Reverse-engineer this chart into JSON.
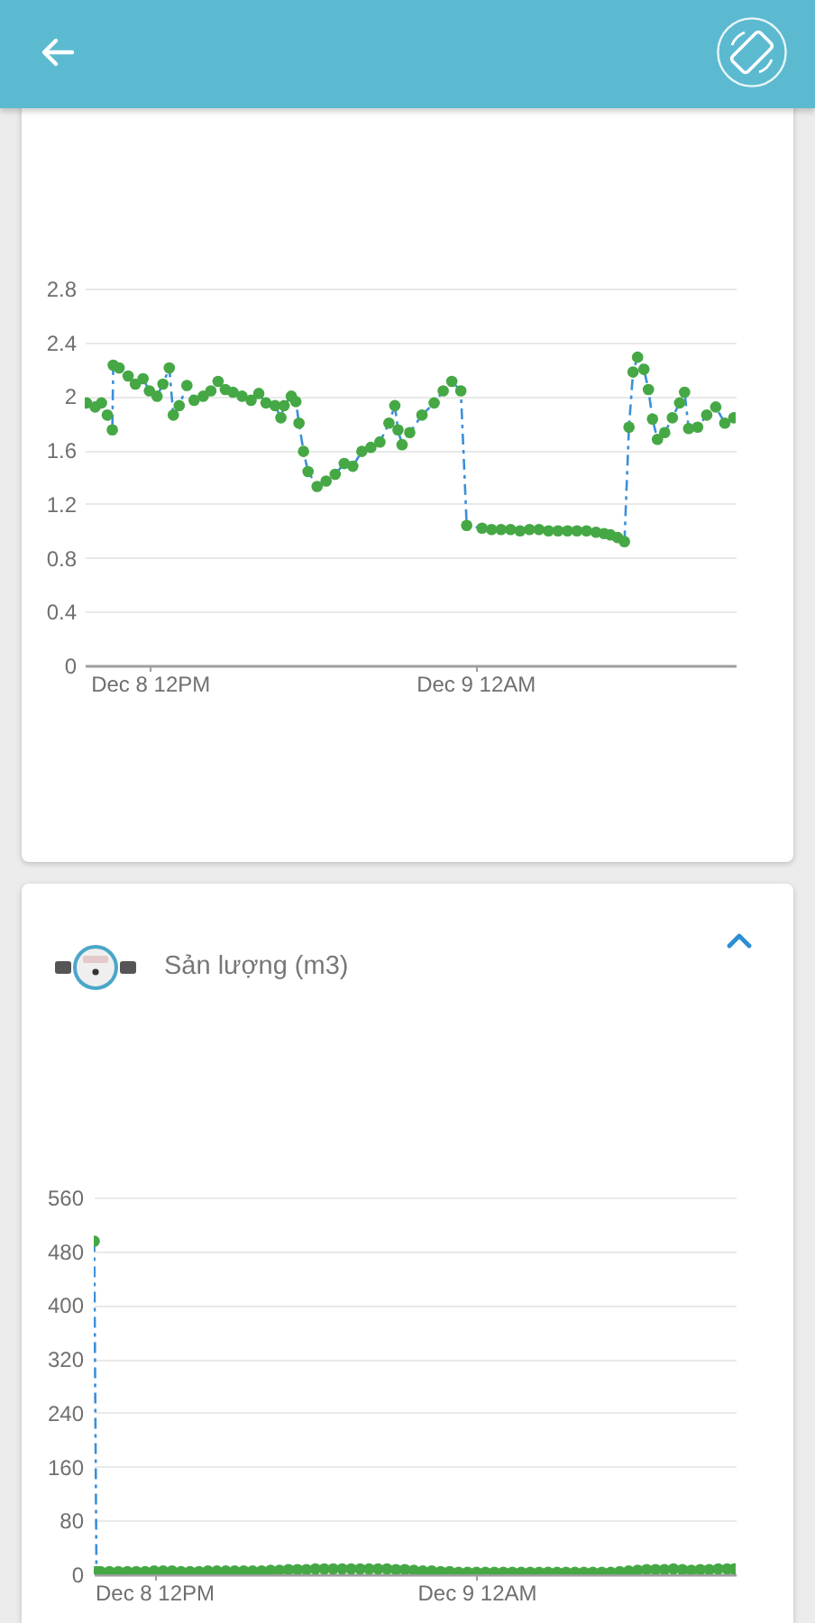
{
  "chart_data": [
    {
      "type": "line",
      "x": [
        "--12-08T09:40",
        "--12-08T09:59",
        "--12-08T10:13",
        "--12-08T10:26",
        "--12-08T10:37",
        "--12-08T10:39",
        "--12-08T10:52",
        "--12-08T11:12",
        "--12-08T11:28",
        "--12-08T11:45",
        "--12-08T11:59",
        "--12-08T12:16",
        "--12-08T12:29",
        "--12-08T12:43",
        "--12-08T12:52",
        "--12-08T13:05",
        "--12-08T13:22",
        "--12-08T13:38",
        "--12-08T13:58",
        "--12-08T14:15",
        "--12-08T14:31",
        "--12-08T14:47",
        "--12-08T15:04",
        "--12-08T15:24",
        "--12-08T15:44",
        "--12-08T16:01",
        "--12-08T16:17",
        "--12-08T16:37",
        "--12-08T16:50",
        "--12-08T16:57",
        "--12-08T17:13",
        "--12-08T17:23",
        "--12-08T17:30",
        "--12-08T17:40",
        "--12-08T17:50",
        "--12-08T18:10",
        "--12-08T18:30",
        "--12-08T18:50",
        "--12-08T19:10",
        "--12-08T19:29",
        "--12-08T19:49",
        "--12-08T20:09",
        "--12-08T20:29",
        "--12-08T20:49",
        "--12-08T21:02",
        "--12-08T21:09",
        "--12-08T21:18",
        "--12-08T21:35",
        "--12-08T22:02",
        "--12-08T22:29",
        "--12-08T22:49",
        "--12-08T23:08",
        "--12-08T23:28",
        "--12-08T23:41",
        "--12-09T00:15",
        "--12-09T00:36",
        "--12-09T00:57",
        "--12-09T01:18",
        "--12-09T01:39",
        "--12-09T02:00",
        "--12-09T02:21",
        "--12-09T02:42",
        "--12-09T03:03",
        "--12-09T03:24",
        "--12-09T03:45",
        "--12-09T04:06",
        "--12-09T04:27",
        "--12-09T04:45",
        "--12-09T04:59",
        "--12-09T05:15",
        "--12-09T05:30",
        "--12-09T05:40",
        "--12-09T05:49",
        "--12-09T05:59",
        "--12-09T06:13",
        "--12-09T06:23",
        "--12-09T06:32",
        "--12-09T06:43",
        "--12-09T06:59",
        "--12-09T07:16",
        "--12-09T07:32",
        "--12-09T07:43",
        "--12-09T07:52",
        "--12-09T08:12",
        "--12-09T08:32",
        "--12-09T08:52",
        "--12-09T09:12",
        "--12-09T09:32"
      ],
      "series": [
        {
          "type": "line",
          "color": "#3b8fd9",
          "line_style": "dashed",
          "marker": "none",
          "values": [
            1.95,
            1.92,
            1.95,
            1.86,
            1.75,
            2.23,
            2.21,
            2.15,
            2.09,
            2.13,
            2.04,
            2.0,
            2.09,
            2.21,
            1.86,
            1.93,
            2.08,
            1.97,
            2.0,
            2.04,
            2.11,
            2.05,
            2.03,
            2.0,
            1.97,
            2.02,
            1.95,
            1.93,
            1.84,
            1.93,
            2.0,
            1.96,
            1.8,
            1.59,
            1.44,
            1.33,
            1.37,
            1.42,
            1.5,
            1.48,
            1.59,
            1.62,
            1.66,
            1.8,
            1.93,
            1.75,
            1.64,
            1.73,
            1.86,
            1.95,
            2.04,
            2.11,
            2.04,
            1.04,
            1.02,
            1.01,
            1.01,
            1.01,
            1.0,
            1.01,
            1.01,
            1.0,
            1.0,
            1.0,
            1.0,
            1.0,
            0.99,
            0.98,
            0.97,
            0.95,
            0.92,
            1.77,
            2.18,
            2.29,
            2.2,
            2.05,
            1.83,
            1.68,
            1.73,
            1.84,
            1.95,
            2.03,
            1.76,
            1.77,
            1.86,
            1.92,
            1.8,
            1.84
          ]
        },
        {
          "type": "scatter",
          "color": "#45a845",
          "marker": "circle",
          "values": [
            1.95,
            1.92,
            1.95,
            1.86,
            1.75,
            2.23,
            2.21,
            2.15,
            2.09,
            2.13,
            2.04,
            2.0,
            2.09,
            2.21,
            1.86,
            1.93,
            2.08,
            1.97,
            2.0,
            2.04,
            2.11,
            2.05,
            2.03,
            2.0,
            1.97,
            2.02,
            1.95,
            1.93,
            1.84,
            1.93,
            2.0,
            1.96,
            1.8,
            1.59,
            1.44,
            1.33,
            1.37,
            1.42,
            1.5,
            1.48,
            1.59,
            1.62,
            1.66,
            1.8,
            1.93,
            1.75,
            1.64,
            1.73,
            1.86,
            1.95,
            2.04,
            2.11,
            2.04,
            1.04,
            1.02,
            1.01,
            1.01,
            1.01,
            1.0,
            1.01,
            1.01,
            1.0,
            1.0,
            1.0,
            1.0,
            1.0,
            0.99,
            0.98,
            0.97,
            0.95,
            0.92,
            1.77,
            2.18,
            2.29,
            2.2,
            2.05,
            1.83,
            1.68,
            1.73,
            1.84,
            1.95,
            2.03,
            1.76,
            1.77,
            1.86,
            1.92,
            1.8,
            1.84
          ]
        }
      ],
      "xlim": [
        "--12-08T09:36",
        "--12-09T09:36"
      ],
      "xticks": [
        {
          "value": "--12-08T12:00",
          "label": "Dec 8 12PM"
        },
        {
          "value": "--12-09T00:00",
          "label": "Dec 9 12AM"
        }
      ],
      "ylim": [
        0,
        2.8
      ],
      "yticks": [
        0,
        0.4,
        0.8,
        1.2,
        1.6,
        2,
        2.4,
        2.8
      ],
      "grid": "y"
    },
    {
      "type": "line",
      "title": "Sản lượng (m3)",
      "x": [
        "--12-08T09:46",
        "--12-08T09:51",
        "--12-08T10:00",
        "--12-08T10:20",
        "--12-08T10:40",
        "--12-08T11:00",
        "--12-08T11:20",
        "--12-08T11:40",
        "--12-08T12:00",
        "--12-08T12:20",
        "--12-08T12:40",
        "--12-08T13:00",
        "--12-08T13:20",
        "--12-08T13:40",
        "--12-08T14:00",
        "--12-08T14:20",
        "--12-08T14:40",
        "--12-08T15:00",
        "--12-08T15:20",
        "--12-08T15:40",
        "--12-08T16:00",
        "--12-08T16:20",
        "--12-08T16:40",
        "--12-08T17:00",
        "--12-08T17:20",
        "--12-08T17:40",
        "--12-08T18:00",
        "--12-08T18:20",
        "--12-08T18:40",
        "--12-08T19:00",
        "--12-08T19:20",
        "--12-08T19:40",
        "--12-08T20:00",
        "--12-08T20:20",
        "--12-08T20:40",
        "--12-08T21:00",
        "--12-08T21:20",
        "--12-08T21:40",
        "--12-08T22:00",
        "--12-08T22:20",
        "--12-08T22:40",
        "--12-08T23:00",
        "--12-08T23:20",
        "--12-08T23:40",
        "--12-09T00:00",
        "--12-09T00:20",
        "--12-09T00:40",
        "--12-09T01:00",
        "--12-09T01:20",
        "--12-09T01:40",
        "--12-09T02:00",
        "--12-09T02:20",
        "--12-09T02:40",
        "--12-09T03:00",
        "--12-09T03:20",
        "--12-09T03:40",
        "--12-09T04:00",
        "--12-09T04:20",
        "--12-09T04:40",
        "--12-09T05:00",
        "--12-09T05:20",
        "--12-09T05:40",
        "--12-09T06:00",
        "--12-09T06:20",
        "--12-09T06:40",
        "--12-09T07:00",
        "--12-09T07:20",
        "--12-09T07:40",
        "--12-09T08:00",
        "--12-09T08:20",
        "--12-09T08:40",
        "--12-09T09:00",
        "--12-09T09:20",
        "--12-09T09:36"
      ],
      "series": [
        {
          "type": "line",
          "color": "#3b8fd9",
          "line_style": "dashed",
          "marker": "none",
          "values": [
            495,
            4,
            null,
            null,
            null,
            null,
            null,
            null,
            null,
            null,
            null,
            null,
            null,
            null,
            null,
            null,
            null,
            null,
            null,
            null,
            null,
            null,
            null,
            null,
            null,
            null,
            null,
            null,
            null,
            null,
            null,
            null,
            null,
            null,
            null,
            null,
            null,
            null,
            null,
            null,
            null,
            null,
            null,
            null,
            null,
            null,
            null,
            null,
            null,
            null,
            null,
            null,
            null,
            null,
            null,
            null,
            null,
            null,
            null,
            null,
            null,
            null,
            null,
            null,
            null,
            null,
            null,
            null,
            null,
            null,
            null,
            null,
            null,
            null
          ]
        },
        {
          "type": "scatter",
          "color": "#45a845",
          "marker": "circle",
          "values": [
            495,
            4,
            4,
            4,
            4,
            4,
            4,
            4,
            5,
            5,
            5,
            4,
            4,
            4,
            5,
            5,
            5,
            5,
            5,
            5,
            5,
            6,
            6,
            7,
            7,
            7,
            8,
            8,
            8,
            8,
            8,
            8,
            8,
            8,
            8,
            7,
            7,
            6,
            5,
            5,
            4,
            4,
            3,
            3,
            3,
            3,
            3,
            3,
            3,
            3,
            3,
            3,
            3,
            3,
            3,
            3,
            3,
            3,
            3,
            3,
            4,
            5,
            6,
            7,
            7,
            7,
            8,
            7,
            6,
            7,
            7,
            8,
            8,
            8
          ]
        }
      ],
      "xlim": [
        "--12-08T09:45",
        "--12-09T09:39"
      ],
      "xticks": [
        {
          "value": "--12-08T12:00",
          "label": "Dec 8 12PM"
        },
        {
          "value": "--12-09T00:00",
          "label": "Dec 9 12AM"
        }
      ],
      "ylim": [
        0,
        560
      ],
      "yticks": [
        0,
        80,
        160,
        240,
        320,
        400,
        480,
        560
      ],
      "grid": "y"
    }
  ]
}
